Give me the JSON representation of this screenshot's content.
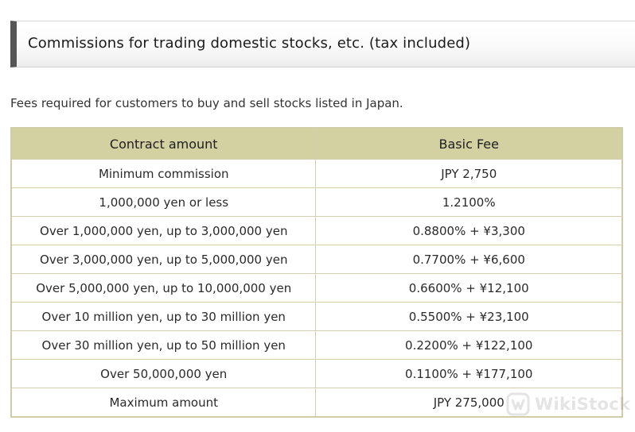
{
  "section": {
    "title": "Commissions for trading domestic stocks, etc. (tax included)"
  },
  "intro": "Fees required for customers to buy and sell stocks listed in Japan.",
  "table": {
    "headers": [
      "Contract amount",
      "Basic Fee"
    ],
    "rows": [
      [
        "Minimum commission",
        "JPY 2,750"
      ],
      [
        "1,000,000 yen or less",
        "1.2100%"
      ],
      [
        "Over 1,000,000 yen, up to 3,000,000 yen",
        "0.8800% + ¥3,300"
      ],
      [
        "Over 3,000,000 yen, up to 5,000,000 yen",
        "0.7700% + ¥6,600"
      ],
      [
        "Over 5,000,000 yen, up to 10,000,000 yen",
        "0.6600% + ¥12,100"
      ],
      [
        "Over 10 million yen, up to 30 million yen",
        "0.5500% + ¥23,100"
      ],
      [
        "Over 30 million yen, up to 50 million yen",
        "0.2200% + ¥122,100"
      ],
      [
        "Over 50,000,000 yen",
        "0.1100% + ¥177,100"
      ],
      [
        "Maximum amount",
        "JPY 275,000"
      ]
    ]
  },
  "watermark": {
    "text": "WikiStock",
    "icon": "wikistock-logo-icon"
  },
  "colors": {
    "header_bar": "#555555",
    "table_header_bg": "#d3d0a2",
    "table_border": "#cfcda6"
  }
}
